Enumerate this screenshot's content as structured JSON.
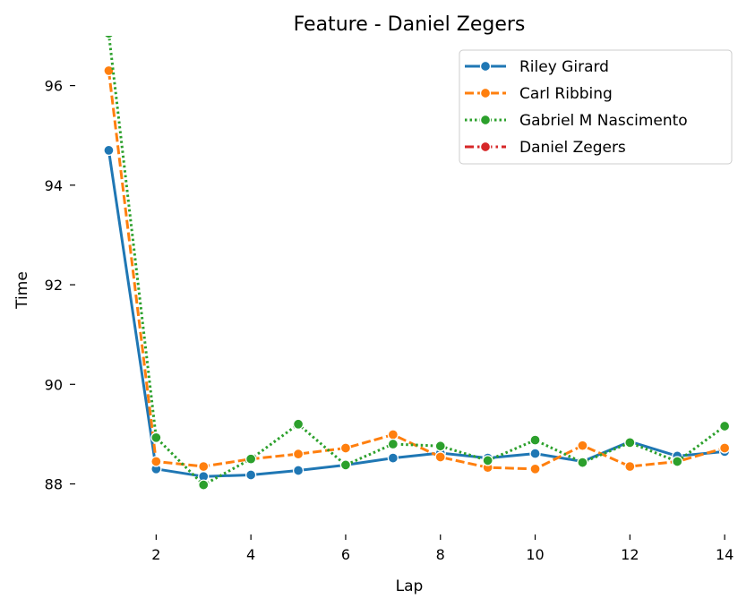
{
  "chart_data": {
    "type": "line",
    "title": "Feature - Daniel Zegers",
    "xlabel": "Lap",
    "ylabel": "Time",
    "xlim": [
      0.5,
      14.3
    ],
    "ylim": [
      87.2,
      97.0
    ],
    "xticks": [
      2,
      4,
      6,
      8,
      10,
      12,
      14
    ],
    "yticks": [
      88,
      90,
      92,
      94,
      96
    ],
    "grid": false,
    "legend_position": "top-right",
    "series": [
      {
        "name": "Riley Girard",
        "color": "#1f77b4",
        "dash": "solid",
        "points": [
          [
            1,
            94.7
          ],
          [
            2,
            88.3
          ],
          [
            3,
            88.15
          ],
          [
            4,
            88.18
          ],
          [
            5,
            88.27
          ],
          [
            6,
            88.38
          ],
          [
            7,
            88.52
          ],
          [
            8,
            88.62
          ],
          [
            9,
            88.52
          ],
          [
            10,
            88.61
          ],
          [
            11,
            88.45
          ],
          [
            12,
            88.85
          ],
          [
            13,
            88.56
          ],
          [
            14,
            88.65
          ]
        ]
      },
      {
        "name": "Carl Ribbing",
        "color": "#ff7f0e",
        "dash": "dashed",
        "points": [
          [
            1,
            96.3
          ],
          [
            2,
            88.45
          ],
          [
            3,
            88.35
          ],
          [
            4,
            88.5
          ],
          [
            5,
            88.6
          ],
          [
            6,
            88.72
          ],
          [
            7,
            88.99
          ],
          [
            8,
            88.54
          ],
          [
            9,
            88.33
          ],
          [
            10,
            88.3
          ],
          [
            11,
            88.77
          ],
          [
            12,
            88.35
          ],
          [
            13,
            88.45
          ],
          [
            14,
            88.72
          ]
        ]
      },
      {
        "name": "Gabriel M Nascimento",
        "color": "#2ca02c",
        "dash": "dotted",
        "points": [
          [
            1,
            97.05
          ],
          [
            2,
            88.93
          ],
          [
            3,
            87.98
          ],
          [
            4,
            88.5
          ],
          [
            5,
            89.2
          ],
          [
            6,
            88.38
          ],
          [
            7,
            88.8
          ],
          [
            8,
            88.76
          ],
          [
            9,
            88.47
          ],
          [
            10,
            88.88
          ],
          [
            11,
            88.43
          ],
          [
            12,
            88.83
          ],
          [
            13,
            88.45
          ],
          [
            14,
            89.16
          ]
        ]
      },
      {
        "name": "Daniel Zegers",
        "color": "#d62728",
        "dash": "dashdot",
        "points": []
      }
    ]
  }
}
